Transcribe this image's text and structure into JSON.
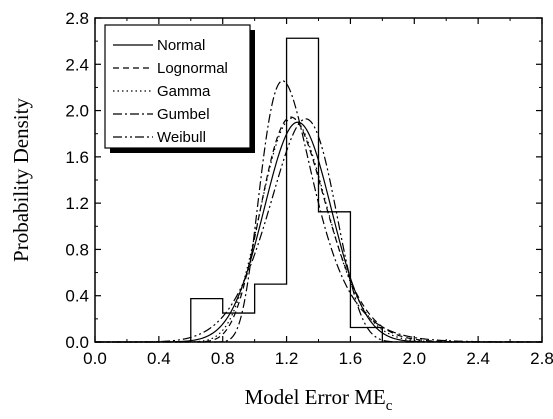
{
  "chart_data": {
    "type": "line",
    "xlabel": "Model Error ME",
    "xlabel_subscript": "c",
    "ylabel": "Probability Density",
    "xlim": [
      0.0,
      2.8
    ],
    "ylim": [
      0.0,
      2.8
    ],
    "xticks": [
      "0.0",
      "0.4",
      "0.8",
      "1.2",
      "1.6",
      "2.0",
      "2.4",
      "2.8"
    ],
    "yticks": [
      "0.0",
      "0.4",
      "0.8",
      "1.2",
      "1.6",
      "2.0",
      "2.4",
      "2.8"
    ],
    "grid": false,
    "legend_position": "top-left",
    "histogram": {
      "bin_edges": [
        0.6,
        0.8,
        1.0,
        1.2,
        1.4,
        1.6,
        1.8
      ],
      "densities": [
        0.375,
        0.25,
        0.5,
        2.625,
        1.125,
        0.125
      ]
    },
    "series": [
      {
        "name": "Normal",
        "dash": "solid",
        "distribution": "normal",
        "mean": 1.27,
        "sd": 0.21
      },
      {
        "name": "Lognormal",
        "dash": "dash",
        "distribution": "lognormal",
        "mu": 0.232,
        "sigma": 0.165
      },
      {
        "name": "Gamma",
        "dash": "dot",
        "distribution": "gamma",
        "shape": 37,
        "scale": 0.0343
      },
      {
        "name": "Gumbel",
        "dash": "dashdot",
        "distribution": "gumbel",
        "loc": 1.175,
        "scale": 0.163
      },
      {
        "name": "Weibull",
        "dash": "dashdotdot",
        "distribution": "weibull",
        "shape": 7.0,
        "scale": 1.35
      }
    ]
  }
}
